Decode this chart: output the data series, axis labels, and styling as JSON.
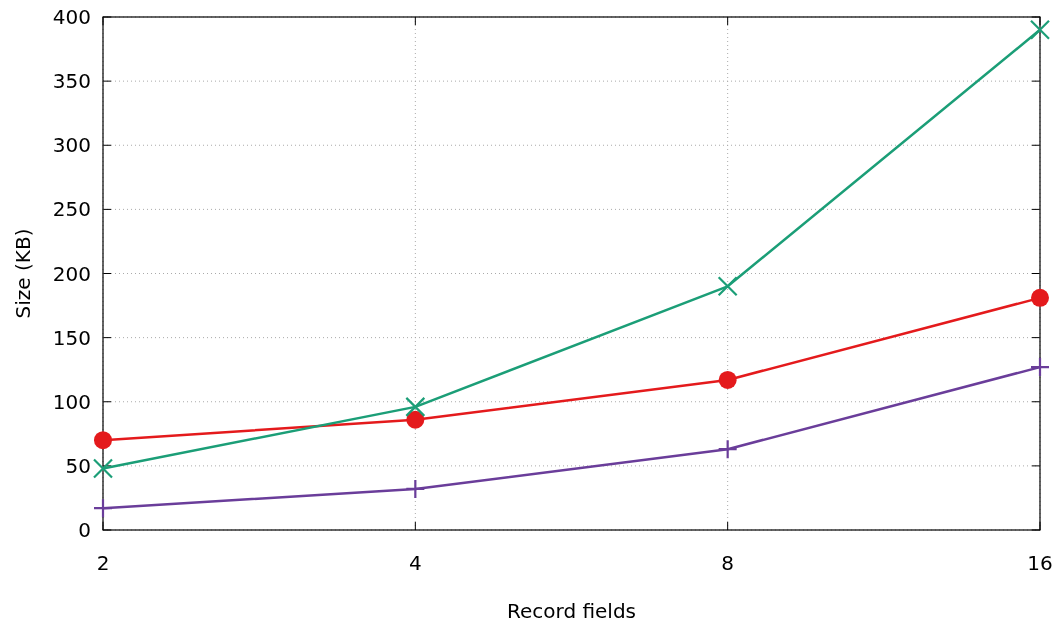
{
  "chart_data": {
    "type": "line",
    "xlabel": "Record fields",
    "ylabel": "Size (KB)",
    "categories": [
      "2",
      "4",
      "8",
      "16"
    ],
    "ylim": [
      0,
      400
    ],
    "yticks": [
      0,
      50,
      100,
      150,
      200,
      250,
      300,
      350,
      400
    ],
    "grid": true,
    "line_style": "solid",
    "series": [
      {
        "color": "#e41a1c",
        "marker": "circle",
        "values": [
          70,
          86,
          117,
          181
        ]
      },
      {
        "color": "#1b9e77",
        "marker": "x",
        "values": [
          48,
          96,
          190,
          390
        ]
      },
      {
        "color": "#6a3d9a",
        "marker": "cross",
        "values": [
          17,
          32,
          63,
          127
        ]
      }
    ]
  }
}
